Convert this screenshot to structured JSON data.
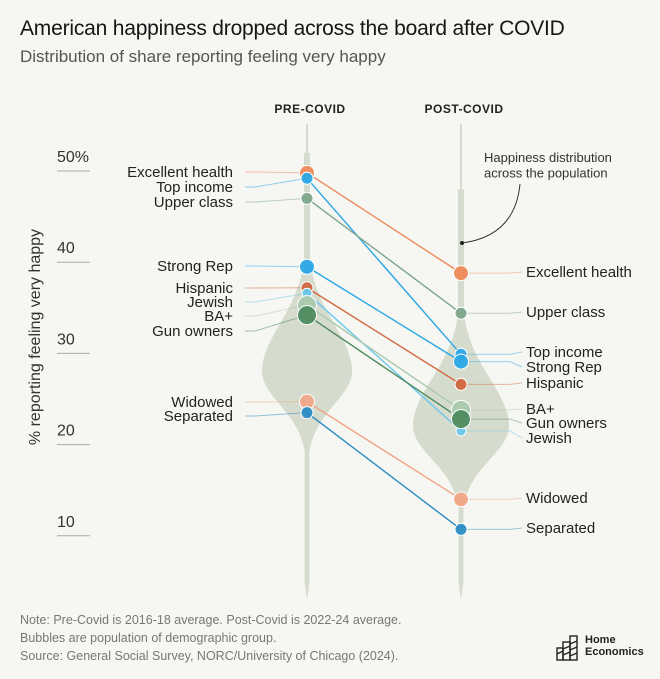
{
  "header": {
    "title": "American happiness dropped across the board after COVID",
    "subtitle": "Distribution of share reporting feeling very happy"
  },
  "annotation": "Happiness distribution across the population",
  "annotation_lines": [
    "Happiness distribution",
    "across the population"
  ],
  "footer": {
    "note1": "Note: Pre-Covid is 2016-18 average. Post-Covid is 2022-24 average.",
    "note2": "Bubbles are population of demographic group.",
    "source": "Source: General Social Survey, NORC/University of Chicago (2024).",
    "logo_line1": "Home",
    "logo_line2": "Economics"
  },
  "colors": {
    "background": "#f6f6f2",
    "violin": "#d6dccd",
    "orange": "#ee8a5a",
    "blue": "#2aa7e6",
    "lightblue": "#6cc6ee",
    "darkblue": "#2a8cc2",
    "green": "#7ea58a",
    "darkgreen": "#4e8a5e",
    "lightgreen": "#a9c9ad",
    "rust": "#d2673f",
    "salmon": "#f0a587"
  },
  "chart_data": {
    "type": "slope",
    "title": "American happiness dropped across the board after COVID",
    "subtitle": "Distribution of share reporting feeling very happy",
    "xlabel": "",
    "ylabel": "% reporting feeling very happy",
    "ylim": [
      5,
      52
    ],
    "yticks": [
      10,
      20,
      30,
      40,
      50
    ],
    "ytick_labels": [
      "10",
      "20",
      "30",
      "40",
      "50%"
    ],
    "categories": [
      "PRE-COVID",
      "POST-COVID"
    ],
    "grid": false,
    "legend": "none",
    "series": [
      {
        "name": "Excellent health",
        "values": [
          49.8,
          38.8
        ],
        "color": "#ee8a5a",
        "size": "medium"
      },
      {
        "name": "Top income",
        "values": [
          49.2,
          29.9
        ],
        "color": "#2aa7e6",
        "size": "small"
      },
      {
        "name": "Upper class",
        "values": [
          47.0,
          34.4
        ],
        "color": "#7ea58a",
        "size": "small"
      },
      {
        "name": "Strong Rep",
        "values": [
          39.5,
          29.1
        ],
        "color": "#2aa7e6",
        "size": "medium"
      },
      {
        "name": "Hispanic",
        "values": [
          37.2,
          26.6
        ],
        "color": "#d2673f",
        "size": "small"
      },
      {
        "name": "Jewish",
        "values": [
          36.6,
          21.5
        ],
        "color": "#6cc6ee",
        "size": "tiny"
      },
      {
        "name": "BA+",
        "values": [
          35.3,
          23.8
        ],
        "color": "#a9c9ad",
        "size": "large"
      },
      {
        "name": "Gun owners",
        "values": [
          34.2,
          22.8
        ],
        "color": "#4e8a5e",
        "size": "large"
      },
      {
        "name": "Widowed",
        "values": [
          24.7,
          14.0
        ],
        "color": "#f0a587",
        "size": "medium"
      },
      {
        "name": "Separated",
        "values": [
          23.5,
          10.7
        ],
        "color": "#2a8cc2",
        "size": "small"
      }
    ],
    "pre_labels": [
      "Excellent health",
      "Top income",
      "Upper class",
      "Strong Rep",
      "Hispanic",
      "Jewish",
      "BA+",
      "Gun owners",
      "Widowed",
      "Separated"
    ],
    "post_labels": [
      "Excellent health",
      "Upper class",
      "Top income",
      "Strong Rep",
      "Hispanic",
      "BA+",
      "Gun owners",
      "Jewish",
      "Widowed",
      "Separated"
    ],
    "distributions": {
      "pre_covid_mode": 28,
      "post_covid_mode": 22
    }
  }
}
